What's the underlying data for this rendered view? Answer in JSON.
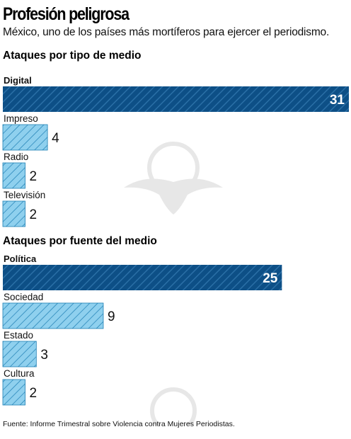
{
  "title": "Profesión peligrosa",
  "subtitle": "México, uno de los países más mortíferos para ejercer el periodismo.",
  "source": "Fuente: Informe Trimestral sobre Violencia contra Mujeres Periodistas.",
  "colors": {
    "dark": "#0d4f86",
    "light": "#8fd0ee",
    "light_stripe": "#1d7fb4"
  },
  "chart_data": [
    {
      "type": "bar",
      "orientation": "horizontal",
      "title": "Ataques por tipo de medio",
      "categories": [
        "Digital",
        "Impreso",
        "Radio",
        "Televisión"
      ],
      "values": [
        31,
        4,
        2,
        2
      ],
      "highlight_index": 0
    },
    {
      "type": "bar",
      "orientation": "horizontal",
      "title": "Ataques por fuente del medio",
      "categories": [
        "Política",
        "Sociedad",
        "Estado",
        "Cultura"
      ],
      "values": [
        25,
        9,
        3,
        2
      ],
      "highlight_index": 0
    }
  ]
}
